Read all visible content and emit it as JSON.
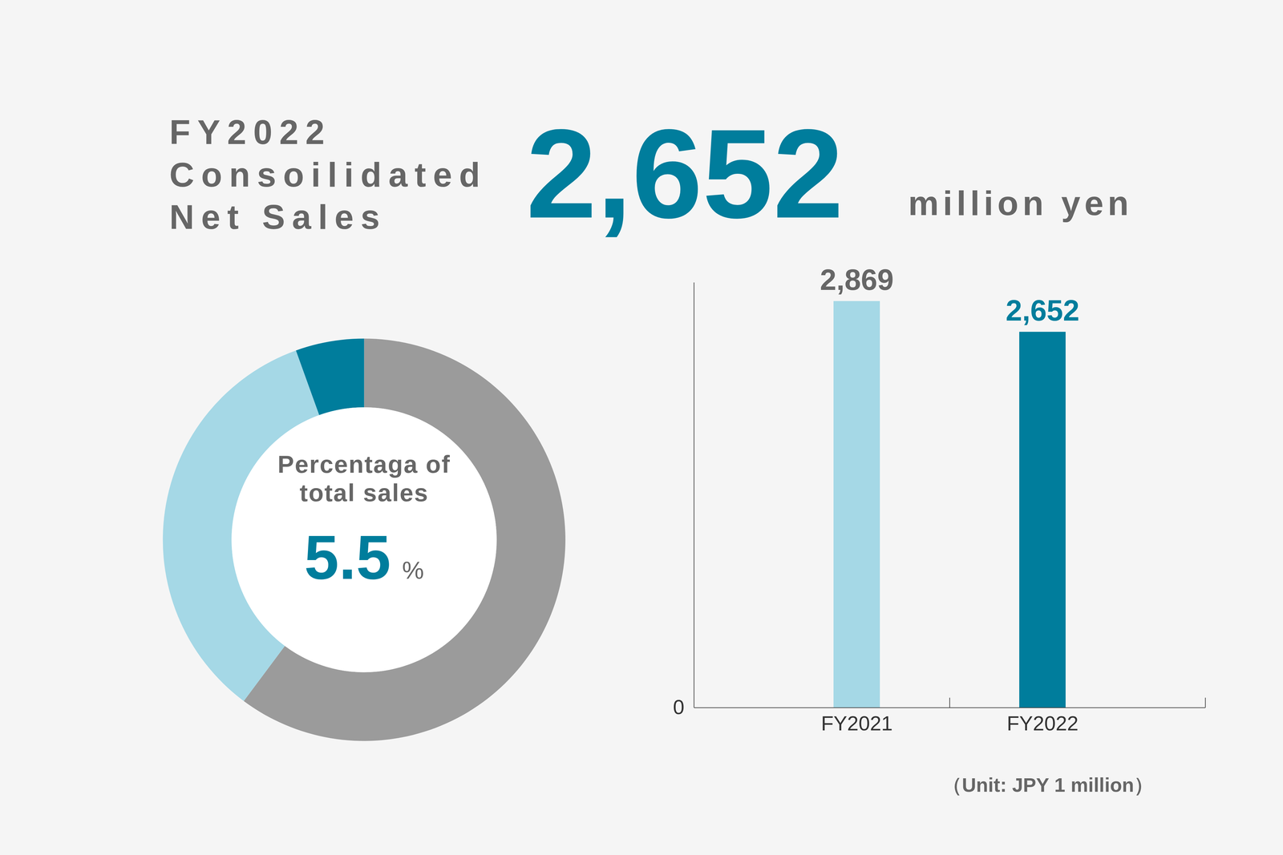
{
  "chart_data": [
    {
      "type": "bar",
      "title": "FY2022\nConsoilidated\nNet Sales",
      "annotations": [
        "2,652",
        "million yen",
        "（Unit: JPY 1 million）"
      ],
      "categories": [
        "FY2021",
        "FY2022"
      ],
      "values": [
        2869,
        2652
      ],
      "value_labels": [
        "2,869",
        "2,652"
      ],
      "colors": [
        "#a5d8e6",
        "#007d9c"
      ],
      "ylim": [
        0,
        3000
      ],
      "yticks": [
        0
      ],
      "data_labels": true,
      "grid": false
    },
    {
      "type": "pie",
      "annotations": [
        "Percentaga of\ntotal sales"
      ],
      "categories": [
        null,
        null,
        null
      ],
      "values": [
        60.2,
        34.3,
        5.5
      ],
      "colors": [
        "#9b9b9b",
        "#a5d8e6",
        "#007d9c"
      ],
      "value_labels": [
        null,
        null,
        "5.5%"
      ]
    }
  ]
}
